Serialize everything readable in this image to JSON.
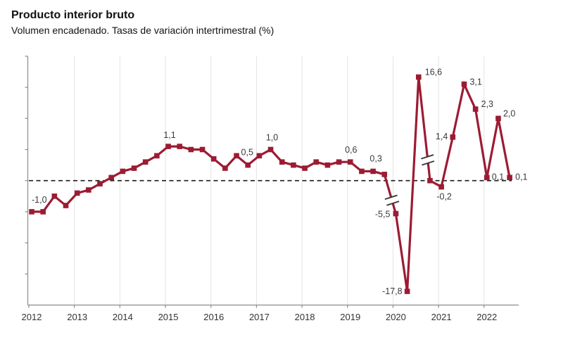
{
  "page": {
    "title": "Producto interior bruto",
    "subtitle": "Volumen encadenado. Tasas de variación intertrimestral (%)"
  },
  "colors": {
    "series": "#9c1b33",
    "data_label": "#3a3a3a",
    "axis": "#8c8c8c",
    "gridline": "#e4e4e4",
    "zero_line": "#1a1a1a",
    "break_mark": "#333333",
    "background": "#ffffff"
  },
  "chart_data": {
    "type": "line",
    "title": "Producto interior bruto",
    "subtitle": "Volumen encadenado. Tasas de variación intertrimestral (%)",
    "unit": "%",
    "xlabel": "",
    "ylabel": "",
    "x_tick_labels": [
      "2012",
      "2013",
      "2014",
      "2015",
      "2016",
      "2017",
      "2018",
      "2019",
      "2020",
      "2021",
      "2022"
    ],
    "y_axis": {
      "displayed_range": [
        -4,
        4
      ],
      "tick_step": 1,
      "tick_labels_visible": false
    },
    "zero_line_style": "dashed",
    "grid": "vertical-years-only",
    "legend": "none",
    "marker": "square",
    "axis_breaks": [
      {
        "between": [
          "2019T4",
          "2020T1"
        ],
        "t": 0.66
      },
      {
        "between": [
          "2020T3",
          "2020T4"
        ],
        "t": 0.8
      }
    ],
    "series": [
      {
        "name": "Tasa de variación intertrimestral del PIB",
        "points": [
          {
            "quarter": "2012T1",
            "value": -1.0,
            "label": "-1,0",
            "anchor": "start",
            "dx": 0,
            "dy": -13
          },
          {
            "quarter": "2012T2",
            "value": -1.0
          },
          {
            "quarter": "2012T3",
            "value": -0.5
          },
          {
            "quarter": "2012T4",
            "value": -0.8
          },
          {
            "quarter": "2013T1",
            "value": -0.4
          },
          {
            "quarter": "2013T2",
            "value": -0.3
          },
          {
            "quarter": "2013T3",
            "value": -0.1
          },
          {
            "quarter": "2013T4",
            "value": 0.1
          },
          {
            "quarter": "2014T1",
            "value": 0.3
          },
          {
            "quarter": "2014T2",
            "value": 0.4
          },
          {
            "quarter": "2014T3",
            "value": 0.6
          },
          {
            "quarter": "2014T4",
            "value": 0.8
          },
          {
            "quarter": "2015T1",
            "value": 1.1,
            "label": "1,1",
            "anchor": "middle",
            "dx": 2,
            "dy": -12
          },
          {
            "quarter": "2015T2",
            "value": 1.1
          },
          {
            "quarter": "2015T3",
            "value": 1.0
          },
          {
            "quarter": "2015T4",
            "value": 1.0
          },
          {
            "quarter": "2016T1",
            "value": 0.7
          },
          {
            "quarter": "2016T2",
            "value": 0.4
          },
          {
            "quarter": "2016T3",
            "value": 0.8
          },
          {
            "quarter": "2016T4",
            "value": 0.5,
            "label": "0,5",
            "anchor": "middle",
            "dx": -1,
            "dy": -14
          },
          {
            "quarter": "2017T1",
            "value": 0.8
          },
          {
            "quarter": "2017T2",
            "value": 1.0,
            "label": "1,0",
            "anchor": "middle",
            "dx": 2,
            "dy": -13
          },
          {
            "quarter": "2017T3",
            "value": 0.6
          },
          {
            "quarter": "2017T4",
            "value": 0.5
          },
          {
            "quarter": "2018T1",
            "value": 0.4
          },
          {
            "quarter": "2018T2",
            "value": 0.6
          },
          {
            "quarter": "2018T3",
            "value": 0.5
          },
          {
            "quarter": "2018T4",
            "value": 0.6
          },
          {
            "quarter": "2019T1",
            "value": 0.6,
            "label": "0,6",
            "anchor": "middle",
            "dx": 1,
            "dy": -13
          },
          {
            "quarter": "2019T2",
            "value": 0.3
          },
          {
            "quarter": "2019T3",
            "value": 0.3,
            "label": "0,3",
            "anchor": "middle",
            "dx": 4,
            "dy": -14
          },
          {
            "quarter": "2019T4",
            "value": 0.2
          },
          {
            "quarter": "2020T1",
            "value": -5.5,
            "display_value": -1.06,
            "label": "-5,5",
            "anchor": "end",
            "dx": -8,
            "dy": 5
          },
          {
            "quarter": "2020T2",
            "value": -17.8,
            "display_value": -3.56,
            "label": "-17,8",
            "anchor": "end",
            "dx": -7,
            "dy": 4
          },
          {
            "quarter": "2020T3",
            "value": 16.6,
            "display_value": 3.33,
            "label": "16,6",
            "anchor": "start",
            "dx": 9,
            "dy": -3
          },
          {
            "quarter": "2020T4",
            "value": 0.0
          },
          {
            "quarter": "2021T1",
            "value": -0.2,
            "label": "-0,2",
            "anchor": "middle",
            "dx": 4,
            "dy": 18
          },
          {
            "quarter": "2021T2",
            "value": 1.4,
            "label": "1,4",
            "anchor": "end",
            "dx": -7,
            "dy": 3
          },
          {
            "quarter": "2021T3",
            "value": 3.1,
            "label": "3,1",
            "anchor": "start",
            "dx": 8,
            "dy": 1
          },
          {
            "quarter": "2021T4",
            "value": 2.3,
            "label": "2,3",
            "anchor": "start",
            "dx": 8,
            "dy": -3
          },
          {
            "quarter": "2022T1",
            "value": 0.1,
            "label": "0,1",
            "anchor": "start",
            "dx": 7,
            "dy": 3
          },
          {
            "quarter": "2022T2",
            "value": 2.0,
            "label": "2,0",
            "anchor": "start",
            "dx": 7,
            "dy": -3
          },
          {
            "quarter": "2022T3",
            "value": 0.1,
            "label": "0,1",
            "anchor": "start",
            "dx": 8,
            "dy": 3
          }
        ]
      }
    ]
  }
}
